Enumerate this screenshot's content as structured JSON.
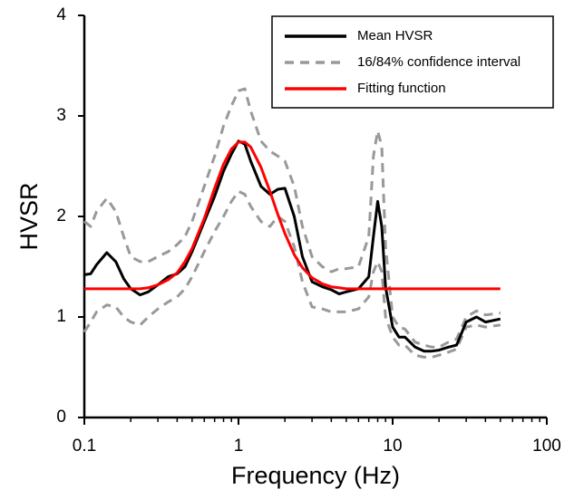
{
  "chart_data": {
    "type": "line",
    "xlabel": "Frequency (Hz)",
    "ylabel": "HVSR",
    "xscale": "log",
    "xlim": [
      0.1,
      100
    ],
    "xticks": [
      0.1,
      1,
      10,
      100
    ],
    "xminorticks": [
      0.2,
      0.3,
      0.4,
      0.5,
      0.6,
      0.7,
      0.8,
      0.9,
      2,
      3,
      4,
      5,
      6,
      7,
      8,
      9,
      20,
      30,
      40,
      50,
      60,
      70,
      80,
      90
    ],
    "ylim": [
      0,
      4
    ],
    "yticks": [
      0,
      1,
      2,
      3,
      4
    ],
    "legend": "upper right",
    "x": [
      0.1,
      0.11,
      0.12,
      0.14,
      0.16,
      0.18,
      0.2,
      0.23,
      0.26,
      0.3,
      0.35,
      0.4,
      0.45,
      0.5,
      0.6,
      0.7,
      0.8,
      0.9,
      1,
      1.1,
      1.2,
      1.4,
      1.6,
      1.8,
      2,
      2.3,
      2.6,
      3,
      3.5,
      4,
      4.5,
      5,
      6,
      7,
      7.5,
      8,
      8.5,
      9,
      10,
      11,
      12,
      14,
      16,
      18,
      20,
      23,
      26,
      30,
      35,
      40,
      50
    ],
    "series": [
      {
        "name": "Mean HVSR",
        "color": "#000000",
        "dashed": false,
        "values": [
          1.42,
          1.43,
          1.52,
          1.64,
          1.55,
          1.38,
          1.28,
          1.22,
          1.25,
          1.32,
          1.4,
          1.43,
          1.5,
          1.65,
          1.95,
          2.2,
          2.45,
          2.62,
          2.75,
          2.72,
          2.55,
          2.3,
          2.22,
          2.27,
          2.28,
          2.0,
          1.6,
          1.35,
          1.3,
          1.27,
          1.23,
          1.25,
          1.28,
          1.4,
          1.8,
          2.15,
          1.9,
          1.3,
          0.9,
          0.8,
          0.8,
          0.7,
          0.66,
          0.66,
          0.67,
          0.7,
          0.72,
          0.95,
          1.0,
          0.95,
          0.98
        ]
      },
      {
        "name": "16/84% confidence interval",
        "color": "#999999",
        "dashed": true,
        "upper": [
          1.95,
          1.9,
          2.05,
          2.18,
          2.05,
          1.8,
          1.6,
          1.55,
          1.55,
          1.6,
          1.65,
          1.72,
          1.8,
          1.95,
          2.3,
          2.6,
          2.9,
          3.1,
          3.25,
          3.27,
          3.05,
          2.75,
          2.65,
          2.6,
          2.55,
          2.3,
          1.9,
          1.6,
          1.5,
          1.45,
          1.48,
          1.48,
          1.5,
          1.8,
          2.6,
          2.85,
          2.7,
          1.7,
          1.0,
          0.9,
          0.88,
          0.75,
          0.72,
          0.7,
          0.7,
          0.75,
          0.78,
          1.0,
          1.06,
          1.02,
          1.04
        ],
        "lower": [
          0.85,
          0.95,
          1.05,
          1.12,
          1.1,
          1.0,
          0.95,
          0.92,
          1.0,
          1.08,
          1.15,
          1.2,
          1.28,
          1.4,
          1.65,
          1.85,
          2.0,
          2.15,
          2.25,
          2.22,
          2.1,
          1.95,
          1.9,
          2.0,
          1.95,
          1.7,
          1.35,
          1.1,
          1.08,
          1.05,
          1.05,
          1.05,
          1.08,
          1.2,
          1.45,
          1.55,
          1.45,
          1.0,
          0.8,
          0.72,
          0.72,
          0.62,
          0.6,
          0.6,
          0.62,
          0.65,
          0.68,
          0.9,
          0.92,
          0.9,
          0.92
        ]
      },
      {
        "name": "Fitting function",
        "color": "#ff0000",
        "dashed": false,
        "values": [
          1.28,
          1.28,
          1.28,
          1.28,
          1.28,
          1.28,
          1.28,
          1.28,
          1.29,
          1.32,
          1.37,
          1.44,
          1.55,
          1.68,
          1.98,
          2.28,
          2.52,
          2.67,
          2.74,
          2.74,
          2.69,
          2.49,
          2.25,
          2.02,
          1.83,
          1.62,
          1.49,
          1.39,
          1.33,
          1.3,
          1.29,
          1.28,
          1.28,
          1.28,
          1.28,
          1.28,
          1.28,
          1.28,
          1.28,
          1.28,
          1.28,
          1.28,
          1.28,
          1.28,
          1.28,
          1.28,
          1.28,
          1.28,
          1.28,
          1.28,
          1.28
        ]
      }
    ]
  }
}
